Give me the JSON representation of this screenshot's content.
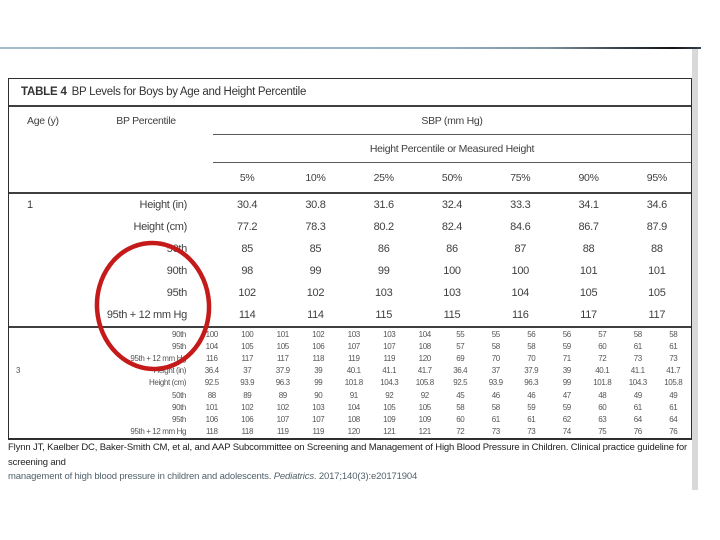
{
  "page": {
    "divider_color": "#97b2c2",
    "divider_dark_color": "#101417",
    "edge_strip_color": "#d9d9d9"
  },
  "annotation": {
    "shape": "hand-drawn-ellipse",
    "color": "#c51a1a"
  },
  "table": {
    "title_bold": "TABLE 4",
    "title_rest": "BP Levels for Boys by Age and Height Percentile",
    "header": {
      "age": "Age (y)",
      "bp_percentile": "BP Percentile",
      "sbp": "SBP (mm Hg)",
      "height_subheader": "Height Percentile or Measured Height",
      "percent_columns": [
        "5%",
        "10%",
        "25%",
        "50%",
        "75%",
        "90%",
        "95%"
      ]
    },
    "main_rows": [
      {
        "age": "1",
        "label": "Height (in)",
        "values": [
          "30.4",
          "30.8",
          "31.6",
          "32.4",
          "33.3",
          "34.1",
          "34.6"
        ]
      },
      {
        "age": "",
        "label": "Height (cm)",
        "values": [
          "77.2",
          "78.3",
          "80.2",
          "82.4",
          "84.6",
          "86.7",
          "87.9"
        ]
      },
      {
        "age": "",
        "label": "50th",
        "values": [
          "85",
          "85",
          "86",
          "86",
          "87",
          "88",
          "88"
        ]
      },
      {
        "age": "",
        "label": "90th",
        "values": [
          "98",
          "99",
          "99",
          "100",
          "100",
          "101",
          "101"
        ]
      },
      {
        "age": "",
        "label": "95th",
        "values": [
          "102",
          "102",
          "103",
          "103",
          "104",
          "105",
          "105"
        ]
      },
      {
        "age": "",
        "label": "95th + 12 mm Hg",
        "values": [
          "114",
          "114",
          "115",
          "115",
          "116",
          "117",
          "117"
        ]
      }
    ],
    "small_rows": [
      {
        "age": "",
        "label": "90th",
        "values": [
          "100",
          "100",
          "101",
          "102",
          "103",
          "103",
          "104",
          "55",
          "55",
          "56",
          "56",
          "57",
          "58",
          "58"
        ]
      },
      {
        "age": "",
        "label": "95th",
        "values": [
          "104",
          "105",
          "105",
          "106",
          "107",
          "107",
          "108",
          "57",
          "58",
          "58",
          "59",
          "60",
          "61",
          "61"
        ]
      },
      {
        "age": "",
        "label": "95th + 12 mm Hg",
        "values": [
          "116",
          "117",
          "117",
          "118",
          "119",
          "119",
          "120",
          "69",
          "70",
          "70",
          "71",
          "72",
          "73",
          "73"
        ]
      },
      {
        "age": "3",
        "label": "Height (in)",
        "values": [
          "36.4",
          "37",
          "37.9",
          "39",
          "40.1",
          "41.1",
          "41.7",
          "36.4",
          "37",
          "37.9",
          "39",
          "40.1",
          "41.1",
          "41.7"
        ]
      },
      {
        "age": "",
        "label": "Height (cm)",
        "values": [
          "92.5",
          "93.9",
          "96.3",
          "99",
          "101.8",
          "104.3",
          "105.8",
          "92.5",
          "93.9",
          "96.3",
          "99",
          "101.8",
          "104.3",
          "105.8"
        ]
      },
      {
        "age": "",
        "label": "50th",
        "values": [
          "88",
          "89",
          "89",
          "90",
          "91",
          "92",
          "92",
          "45",
          "46",
          "46",
          "47",
          "48",
          "49",
          "49"
        ]
      },
      {
        "age": "",
        "label": "90th",
        "values": [
          "101",
          "102",
          "102",
          "103",
          "104",
          "105",
          "105",
          "58",
          "58",
          "59",
          "59",
          "60",
          "61",
          "61"
        ]
      },
      {
        "age": "",
        "label": "95th",
        "values": [
          "106",
          "106",
          "107",
          "107",
          "108",
          "109",
          "109",
          "60",
          "61",
          "61",
          "62",
          "63",
          "64",
          "64"
        ]
      },
      {
        "age": "",
        "label": "95th + 12 mm Hg",
        "values": [
          "118",
          "118",
          "119",
          "119",
          "120",
          "121",
          "121",
          "72",
          "73",
          "73",
          "74",
          "75",
          "76",
          "76"
        ]
      }
    ]
  },
  "citation": {
    "line1": "Flynn JT, Kaelber DC, Baker-Smith CM, et al, and AAP Subcommittee on Screening and Management of High Blood Pressure in Children. Clinical practice guideline for screening and",
    "line2_pre": "management of high blood pressure in children and adolescents. ",
    "line2_italic": "Pediatrics",
    "line2_post": ". 2017;140(3):e20171904"
  }
}
